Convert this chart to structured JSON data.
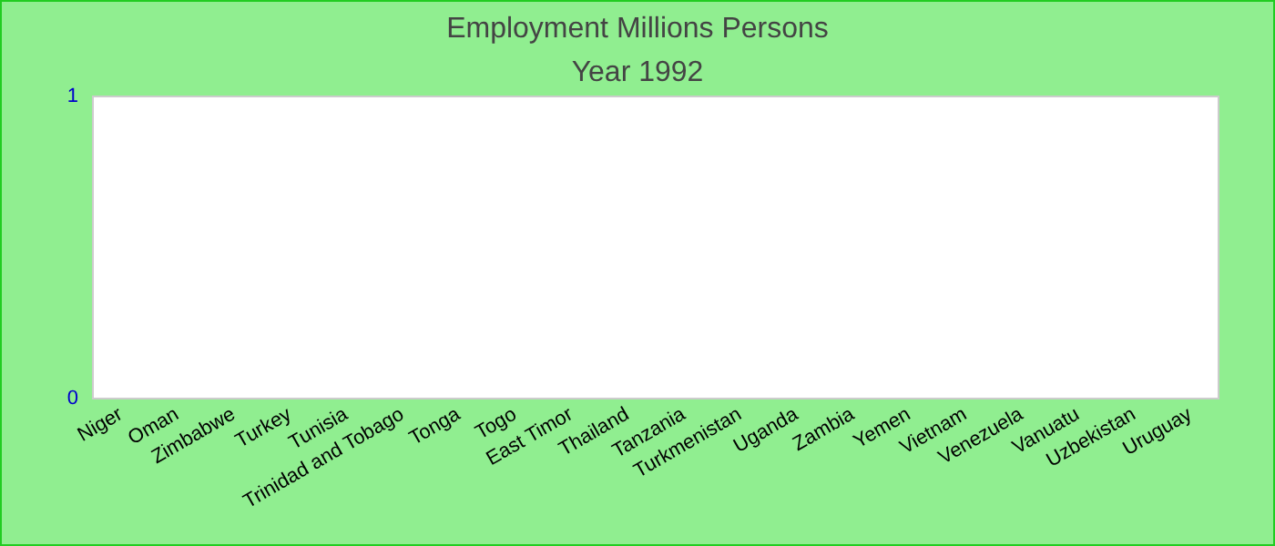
{
  "chart_data": {
    "type": "bar",
    "title": "Employment Millions Persons",
    "subtitle": "Year 1992",
    "categories": [
      "Niger",
      "Oman",
      "Zimbabwe",
      "Turkey",
      "Tunisia",
      "Trinidad and Tobago",
      "Tonga",
      "Togo",
      "East Timor",
      "Thailand",
      "Tanzania",
      "Turkmenistan",
      "Uganda",
      "Zambia",
      "Yemen",
      "Vietnam",
      "Venezuela",
      "Vanuatu",
      "Uzbekistan",
      "Uruguay"
    ],
    "values": [
      null,
      null,
      null,
      null,
      null,
      null,
      null,
      null,
      null,
      null,
      null,
      null,
      null,
      null,
      null,
      null,
      null,
      null,
      null,
      null
    ],
    "ylim": [
      0,
      1
    ],
    "yticks": [
      0,
      1
    ],
    "grid": false
  }
}
